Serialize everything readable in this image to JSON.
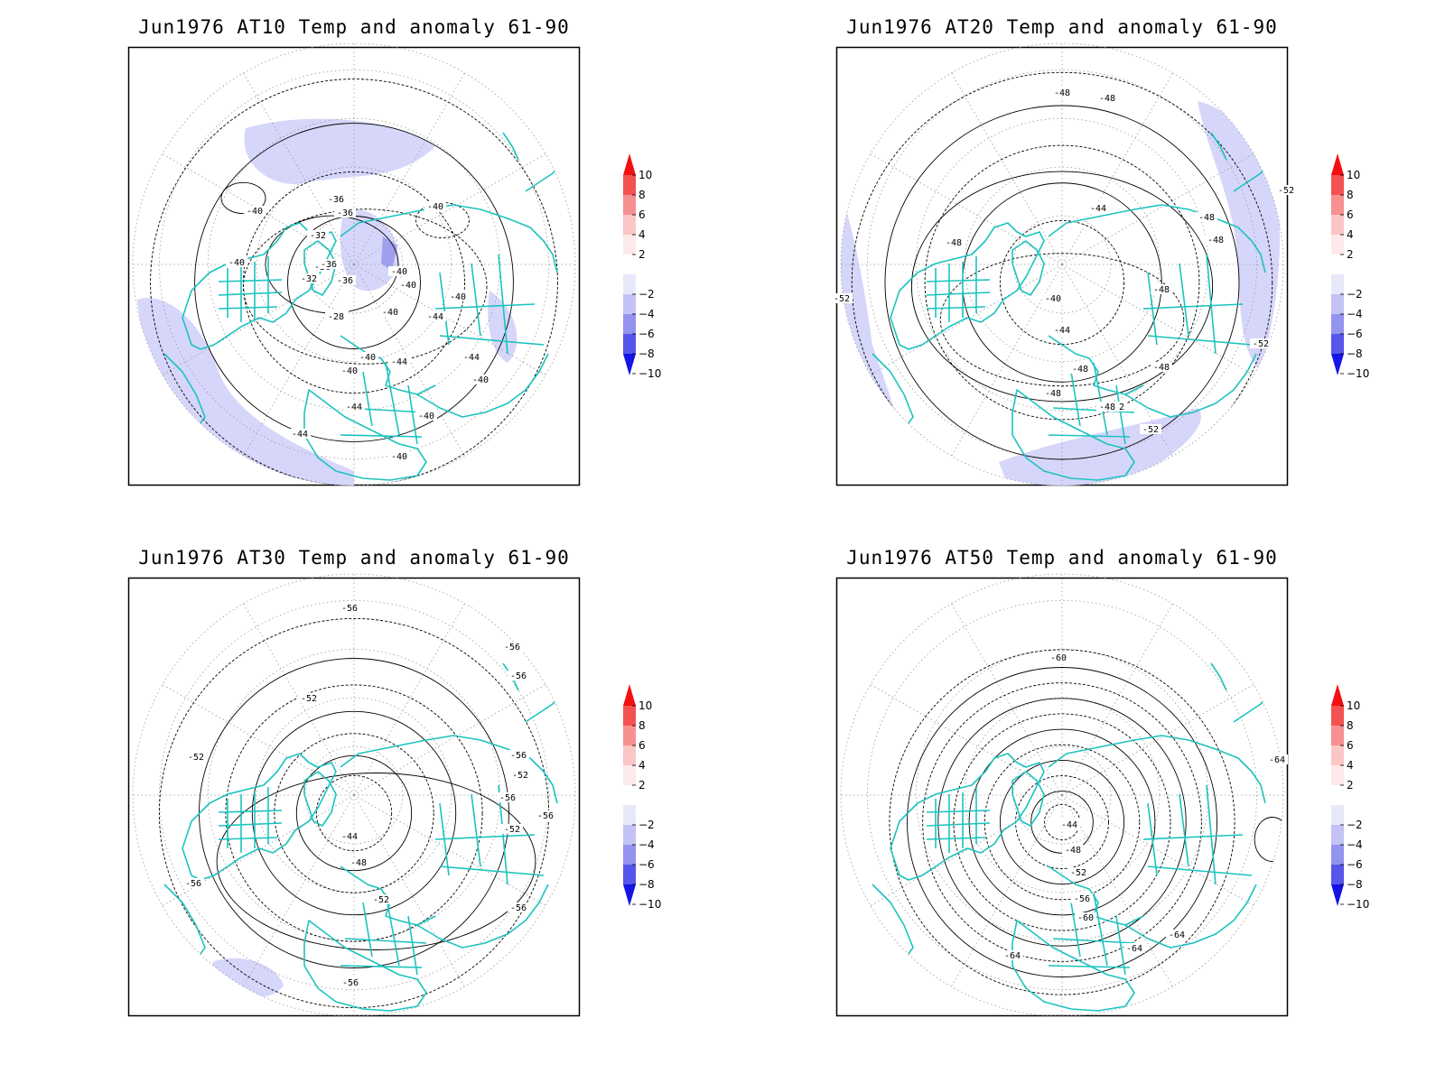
{
  "colors": {
    "coast": "#1bc3bf",
    "contour": "#000000",
    "grid": "#9a9a9a",
    "frame": "#000000",
    "anomaly_fill": "#d6d6fb",
    "anomaly_fill_strong": "#9f9ff0"
  },
  "colorbar": {
    "levels": [
      "10",
      "8",
      "6",
      "4",
      "2",
      "−2",
      "−4",
      "−6",
      "−8",
      "−10"
    ],
    "colors": [
      "#f31010",
      "#f45151",
      "#f79090",
      "#fbc6c6",
      "#fde9e9",
      "#ffffff",
      "#e8e8fb",
      "#c3c3f6",
      "#9494ee",
      "#5656ea",
      "#1414e6"
    ]
  },
  "panels": [
    {
      "title": "Jun1976 AT10 Temp and anomaly 61-90",
      "contour_labels": [
        "-40",
        "-36",
        "-36",
        "-32",
        "-40",
        "-36",
        "-36",
        "-36",
        "-36",
        "-32",
        "-28",
        "-40",
        "-40",
        "-40",
        "-40",
        "-40",
        "-44",
        "-40",
        "-40",
        "-44",
        "-44",
        "-40",
        "-44",
        "-40",
        "-44",
        "-40"
      ],
      "anomaly_shading": "blue"
    },
    {
      "title": "Jun1976 AT20 Temp and anomaly 61-90",
      "contour_labels": [
        "-48",
        "-48",
        "-44",
        "-48",
        "-48",
        "-48",
        "-52",
        "-40",
        "-44",
        "-48",
        "-48",
        "-52",
        "-48",
        "-48",
        "-48",
        "-52",
        "-52",
        "-52"
      ],
      "anomaly_shading": "blue"
    },
    {
      "title": "Jun1976 AT30 Temp and anomaly 61-90",
      "contour_labels": [
        "-56",
        "-56",
        "-56",
        "-52",
        "-52",
        "-56",
        "-52",
        "-56",
        "-56",
        "-52",
        "-44",
        "-48",
        "-52",
        "-56",
        "-56",
        "-56"
      ],
      "anomaly_shading": "blue"
    },
    {
      "title": "Jun1976 AT50 Temp and anomaly 61-90",
      "contour_labels": [
        "-60",
        "-64",
        "-44",
        "-48",
        "-52",
        "-56",
        "-60",
        "-64",
        "-64",
        "-64"
      ],
      "anomaly_shading": "none"
    }
  ]
}
